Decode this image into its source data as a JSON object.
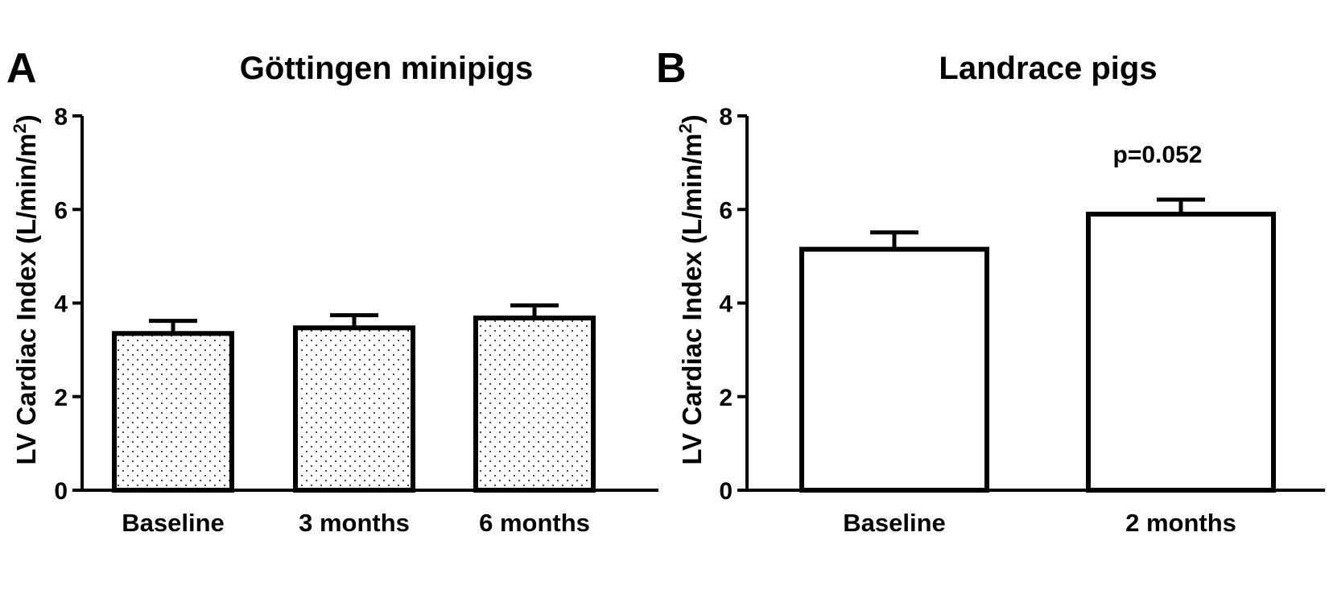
{
  "chart_data": [
    {
      "panel": "A",
      "type": "bar",
      "title": "Göttingen minipigs",
      "ylabel": "LV Cardiac Index (L/min/m",
      "ylabel_sup": "2",
      "ylabel_close": ")",
      "xlabel": "",
      "ylim": [
        0,
        8
      ],
      "yticks": [
        "0",
        "2",
        "4",
        "6",
        "8"
      ],
      "categories": [
        "Baseline",
        "3 months",
        "6 months"
      ],
      "values": [
        3.35,
        3.47,
        3.68
      ],
      "errors": [
        0.27,
        0.27,
        0.27
      ],
      "fill_pattern": "dots",
      "annotation": ""
    },
    {
      "panel": "B",
      "type": "bar",
      "title": "Landrace pigs",
      "ylabel": "LV Cardiac Index (L/min/m",
      "ylabel_sup": "2",
      "ylabel_close": ")",
      "xlabel": "",
      "ylim": [
        0,
        8
      ],
      "yticks": [
        "0",
        "2",
        "4",
        "6",
        "8"
      ],
      "categories": [
        "Baseline",
        "2 months"
      ],
      "values": [
        5.15,
        5.9
      ],
      "errors": [
        0.36,
        0.31
      ],
      "fill_pattern": "none",
      "annotation": "p=0.052"
    }
  ],
  "colors": {
    "ink": "#000000",
    "bar_fill": "#ffffff",
    "dot": "#333333"
  }
}
